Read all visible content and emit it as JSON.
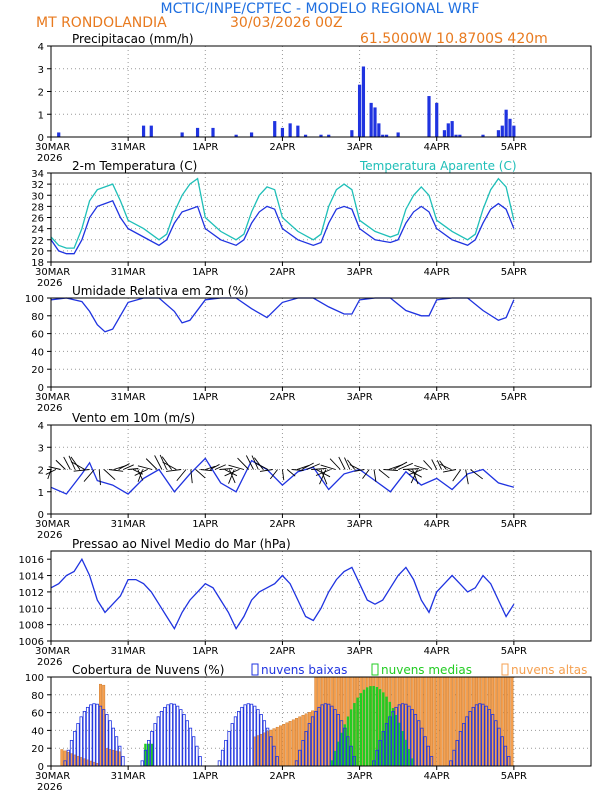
{
  "header": {
    "title": "MCTIC/INPE/CPTEC - MODELO REGIONAL WRF",
    "location": "MT RONDOLANDIA",
    "run": "30/03/2026 00Z",
    "coords": "61.5000W 10.8700S 420m"
  },
  "colors": {
    "blue": "#1f33e0",
    "cyan": "#1fbfb8",
    "orange": "#f5a050",
    "green": "#22cc22",
    "title": "#1f6fe0",
    "header_orange": "#e87a1f"
  },
  "x_axis": {
    "ticks": [
      "30MAR",
      "31MAR",
      "1APR",
      "2APR",
      "3APR",
      "4APR",
      "5APR"
    ],
    "year": "2026",
    "days": 7
  },
  "chart_data": [
    {
      "id": "precip",
      "type": "bar",
      "title": "Precipitacao (mm/h)",
      "ylim": [
        0,
        4
      ],
      "yticks": [
        "0",
        "1",
        "2",
        "3",
        "4"
      ],
      "x": [
        0.1,
        1.2,
        1.3,
        1.7,
        1.9,
        2.1,
        2.4,
        2.6,
        2.9,
        3.0,
        3.1,
        3.2,
        3.3,
        3.5,
        3.6,
        3.9,
        4.0,
        4.05,
        4.15,
        4.2,
        4.25,
        4.3,
        4.35,
        4.5,
        4.9,
        5.0,
        5.1,
        5.15,
        5.2,
        5.25,
        5.3,
        5.6,
        5.8,
        5.85,
        5.9,
        5.95,
        6.0
      ],
      "values": [
        0.2,
        0.5,
        0.5,
        0.2,
        0.4,
        0.4,
        0.1,
        0.2,
        0.7,
        0.4,
        0.6,
        0.5,
        0.1,
        0.1,
        0.1,
        0.3,
        2.3,
        3.1,
        1.5,
        1.3,
        0.6,
        0.1,
        0.1,
        0.2,
        1.8,
        1.5,
        0.3,
        0.6,
        0.7,
        0.1,
        0.1,
        0.1,
        0.3,
        0.5,
        1.2,
        0.8,
        0.5
      ]
    },
    {
      "id": "temp",
      "type": "line",
      "title": "2-m Temperatura (C)",
      "legend": "Temperatura Aparente (C)",
      "ylim": [
        18,
        34
      ],
      "yticks": [
        "18",
        "20",
        "22",
        "24",
        "26",
        "28",
        "30",
        "32",
        "34"
      ],
      "series": [
        {
          "name": "Temperatura",
          "color": "blue",
          "x": [
            0,
            0.1,
            0.2,
            0.3,
            0.4,
            0.5,
            0.6,
            0.7,
            0.8,
            0.9,
            1.0,
            1.2,
            1.4,
            1.5,
            1.6,
            1.7,
            1.8,
            1.9,
            2.0,
            2.2,
            2.4,
            2.5,
            2.6,
            2.7,
            2.8,
            2.9,
            3.0,
            3.2,
            3.4,
            3.5,
            3.6,
            3.7,
            3.8,
            3.9,
            4.0,
            4.2,
            4.4,
            4.5,
            4.6,
            4.7,
            4.8,
            4.9,
            5.0,
            5.2,
            5.4,
            5.5,
            5.6,
            5.7,
            5.8,
            5.9,
            6.0
          ],
          "values": [
            22,
            20,
            19.5,
            19.5,
            22,
            26,
            28,
            28.5,
            29,
            26,
            24,
            22.5,
            21,
            22,
            25,
            27,
            27.5,
            28,
            24,
            22,
            21,
            22,
            25,
            27,
            28,
            27.5,
            24,
            22,
            21,
            21.5,
            25,
            27.5,
            28,
            27.5,
            24,
            22,
            21.5,
            22,
            25,
            27,
            28,
            27,
            24,
            22,
            21,
            22,
            25,
            27.5,
            28.5,
            27.5,
            24
          ]
        },
        {
          "name": "Temperatura Aparente",
          "color": "cyan",
          "x": [
            0,
            0.1,
            0.2,
            0.3,
            0.4,
            0.5,
            0.6,
            0.7,
            0.8,
            0.9,
            1.0,
            1.2,
            1.4,
            1.5,
            1.6,
            1.7,
            1.8,
            1.9,
            2.0,
            2.2,
            2.4,
            2.5,
            2.6,
            2.7,
            2.8,
            2.9,
            3.0,
            3.2,
            3.4,
            3.5,
            3.6,
            3.7,
            3.8,
            3.9,
            4.0,
            4.2,
            4.4,
            4.5,
            4.6,
            4.7,
            4.8,
            4.9,
            5.0,
            5.2,
            5.4,
            5.5,
            5.6,
            5.7,
            5.8,
            5.9,
            6.0
          ],
          "values": [
            22.5,
            21,
            20.5,
            20.5,
            24,
            29,
            31,
            31.5,
            32,
            29,
            25.5,
            24,
            22,
            23,
            27,
            30,
            32,
            33,
            26,
            23.5,
            22,
            23,
            27,
            30,
            31.5,
            31,
            26,
            23.5,
            22,
            23,
            28,
            31,
            32,
            31,
            25.5,
            23.5,
            22.5,
            23,
            27.5,
            30,
            31.5,
            30,
            25.5,
            23.5,
            22,
            23,
            27.5,
            31,
            33,
            31.5,
            25.5
          ]
        }
      ]
    },
    {
      "id": "rh",
      "type": "line",
      "title": "Umidade Relativa em 2m (%)",
      "ylim": [
        0,
        100
      ],
      "yticks": [
        "0",
        "20",
        "40",
        "60",
        "80",
        "100"
      ],
      "series": [
        {
          "name": "Umidade Relativa",
          "color": "blue",
          "x": [
            0,
            0.2,
            0.4,
            0.5,
            0.6,
            0.7,
            0.8,
            1.0,
            1.2,
            1.4,
            1.6,
            1.7,
            1.8,
            2.0,
            2.2,
            2.4,
            2.6,
            2.8,
            3.0,
            3.2,
            3.4,
            3.6,
            3.8,
            3.9,
            4.0,
            4.2,
            4.4,
            4.6,
            4.8,
            4.9,
            5.0,
            5.2,
            5.4,
            5.6,
            5.8,
            5.9,
            6.0
          ],
          "values": [
            98,
            100,
            96,
            85,
            70,
            62,
            65,
            95,
            100,
            100,
            85,
            72,
            75,
            98,
            100,
            100,
            88,
            78,
            95,
            100,
            100,
            90,
            82,
            82,
            98,
            100,
            100,
            86,
            80,
            80,
            98,
            100,
            100,
            86,
            75,
            78,
            98
          ]
        }
      ]
    },
    {
      "id": "wind",
      "type": "line",
      "title": "Vento em 10m (m/s)",
      "ylim": [
        0,
        4
      ],
      "yticks": [
        "0",
        "1",
        "2",
        "3",
        "4"
      ],
      "series": [
        {
          "name": "Vento",
          "color": "blue",
          "x": [
            0,
            0.2,
            0.4,
            0.5,
            0.6,
            0.8,
            1.0,
            1.2,
            1.4,
            1.6,
            1.8,
            2.0,
            2.2,
            2.4,
            2.6,
            2.8,
            3.0,
            3.2,
            3.4,
            3.6,
            3.8,
            4.0,
            4.2,
            4.4,
            4.6,
            4.8,
            5.0,
            5.2,
            5.4,
            5.6,
            5.8,
            6.0
          ],
          "values": [
            1.2,
            0.9,
            1.8,
            2.3,
            1.5,
            1.3,
            0.9,
            1.6,
            2.0,
            1.0,
            1.8,
            2.5,
            1.4,
            1.0,
            2.4,
            2.0,
            1.3,
            1.9,
            2.1,
            1.1,
            1.8,
            2.0,
            1.5,
            1.0,
            1.9,
            1.3,
            1.6,
            1.1,
            1.8,
            2.0,
            1.4,
            1.2
          ]
        }
      ]
    },
    {
      "id": "pressure",
      "type": "line",
      "title": "Pressao ao Nivel Medio do Mar (hPa)",
      "ylim": [
        1006,
        1017
      ],
      "yticks": [
        "1006",
        "1008",
        "1010",
        "1012",
        "1014",
        "1016"
      ],
      "series": [
        {
          "name": "Pressao",
          "color": "blue",
          "x": [
            0,
            0.1,
            0.2,
            0.3,
            0.4,
            0.5,
            0.6,
            0.7,
            0.8,
            0.9,
            1.0,
            1.1,
            1.2,
            1.3,
            1.4,
            1.5,
            1.6,
            1.7,
            1.8,
            1.9,
            2.0,
            2.1,
            2.2,
            2.3,
            2.4,
            2.5,
            2.6,
            2.7,
            2.8,
            2.9,
            3.0,
            3.1,
            3.2,
            3.3,
            3.4,
            3.5,
            3.6,
            3.7,
            3.8,
            3.9,
            4.0,
            4.1,
            4.2,
            4.3,
            4.4,
            4.5,
            4.6,
            4.7,
            4.8,
            4.9,
            5.0,
            5.1,
            5.2,
            5.3,
            5.4,
            5.5,
            5.6,
            5.7,
            5.8,
            5.9,
            6.0
          ],
          "values": [
            1012.5,
            1013,
            1014,
            1014.5,
            1016,
            1014,
            1011,
            1009.5,
            1010.5,
            1011.5,
            1013.5,
            1013.5,
            1013,
            1012,
            1010.5,
            1009,
            1007.5,
            1009.5,
            1011,
            1012,
            1013,
            1012.5,
            1011,
            1009.5,
            1007.5,
            1009,
            1011,
            1012,
            1012.5,
            1013,
            1014,
            1013,
            1011,
            1009,
            1008.5,
            1010,
            1012,
            1013.5,
            1014.5,
            1015,
            1013,
            1011,
            1010.5,
            1011,
            1012.5,
            1014,
            1015,
            1013.5,
            1011,
            1009.5,
            1012,
            1013,
            1014,
            1013,
            1012,
            1012.5,
            1014,
            1013,
            1011,
            1009,
            1010.5
          ]
        }
      ]
    },
    {
      "id": "clouds",
      "type": "bar",
      "title": "Cobertura de Nuvens (%)",
      "ylim": [
        0,
        100
      ],
      "yticks": [
        "0",
        "20",
        "40",
        "60",
        "80",
        "100"
      ],
      "legend": [
        "nuvens baixas",
        "nuvens medias",
        "nuvens altas"
      ]
    }
  ]
}
